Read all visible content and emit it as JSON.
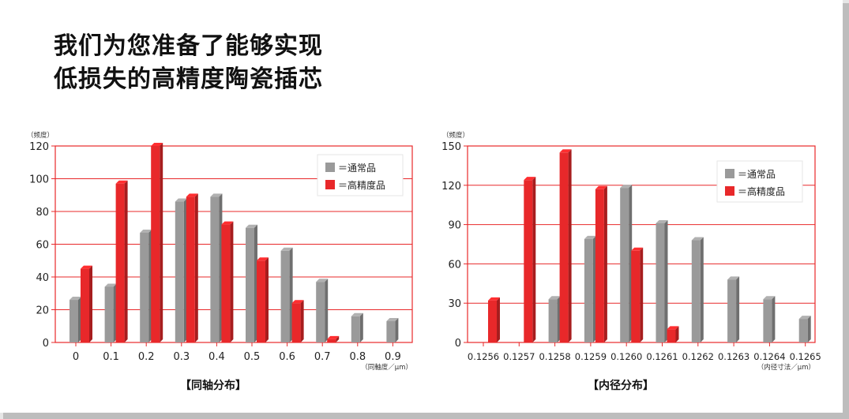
{
  "headline": {
    "line1": "我们为您准备了能够实现",
    "line2": "低损失的高精度陶瓷插芯"
  },
  "colors": {
    "standard": "#9a9a9a",
    "high_precision": "#e8282a",
    "grid": "#e8282a"
  },
  "chart_data": [
    {
      "type": "bar",
      "caption": "【同轴分布】",
      "ylabel": "（频度）",
      "xlabel": "（同軸度／μm）",
      "categories": [
        "0",
        "0.1",
        "0.2",
        "0.3",
        "0.4",
        "0.5",
        "0.6",
        "0.7",
        "0.8",
        "0.9"
      ],
      "ylim": [
        0,
        120
      ],
      "yticks": [
        "0",
        "20",
        "40",
        "60",
        "80",
        "100",
        "120"
      ],
      "legend_position": "top-right",
      "series": [
        {
          "name": "＝通常品",
          "color": "#9a9a9a",
          "values": [
            26,
            34,
            67,
            86,
            89,
            70,
            56,
            37,
            16,
            13
          ]
        },
        {
          "name": "＝高精度品",
          "color": "#e8282a",
          "values": [
            45,
            97,
            120,
            89,
            72,
            50,
            24,
            2,
            0,
            0
          ]
        }
      ]
    },
    {
      "type": "bar",
      "caption": "【内径分布】",
      "ylabel": "（频度）",
      "xlabel": "（内径寸法／μm）",
      "categories": [
        "0.1256",
        "0.1257",
        "0.1258",
        "0.1259",
        "0.1260",
        "0.1261",
        "0.1262",
        "0.1263",
        "0.1264",
        "0.1265"
      ],
      "ylim": [
        0,
        150
      ],
      "yticks": [
        "0",
        "30",
        "60",
        "90",
        "120",
        "150"
      ],
      "legend_position": "top-right",
      "series": [
        {
          "name": "＝通常品",
          "color": "#9a9a9a",
          "values": [
            0,
            0,
            33,
            79,
            118,
            91,
            78,
            48,
            33,
            18
          ]
        },
        {
          "name": "＝高精度品",
          "color": "#e8282a",
          "values": [
            32,
            124,
            145,
            117,
            70,
            10,
            0,
            0,
            0,
            0
          ]
        }
      ]
    }
  ]
}
